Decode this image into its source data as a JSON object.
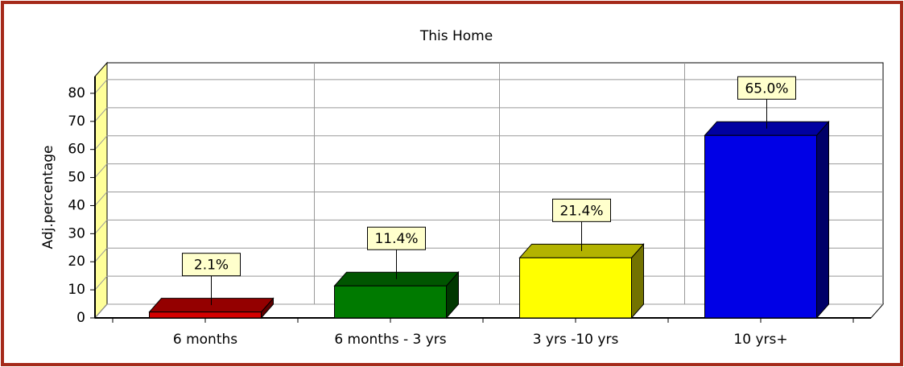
{
  "chart_data": {
    "type": "bar3d",
    "title": "This Home",
    "y_label": "Adj.percentage",
    "categories": [
      "6 months",
      "6 months - 3 yrs",
      "3 yrs -10 yrs",
      "10 yrs+"
    ],
    "values": [
      2.1,
      11.4,
      21.4,
      65.0
    ],
    "value_labels": [
      "2.1%",
      "11.4%",
      "21.4%",
      "65.0%"
    ],
    "colors": [
      "#d40000",
      "#007a00",
      "#ffff00",
      "#0000e6"
    ],
    "ylim": [
      0,
      86
    ],
    "yticks": [
      0,
      10,
      20,
      30,
      40,
      50,
      60,
      70,
      80
    ],
    "grid": true
  }
}
